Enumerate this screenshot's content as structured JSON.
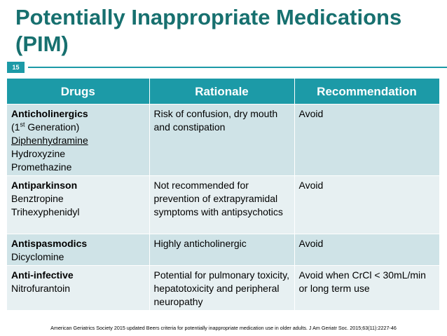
{
  "title": "Potentially Inappropriate Medications (PIM)",
  "slide_number": "15",
  "table": {
    "header": [
      "Drugs",
      "Rationale",
      "Recommendation"
    ],
    "rows": [
      [
        [
          "Anticholinergics",
          [
            "(1",
            "st",
            " Generation)"
          ],
          "Diphenhydramine",
          "Hydroxyzine",
          "Promethazine"
        ],
        "Risk of confusion, dry mouth and constipation",
        "Avoid"
      ],
      [
        [
          "Antiparkinson",
          "Benztropine",
          "Trihexyphenidyl"
        ],
        "Not recommended for prevention of extrapyramidal symptoms with antipsychotics",
        "Avoid"
      ],
      [
        [
          "Antispasmodics",
          "Dicyclomine"
        ],
        "Highly anticholinergic",
        "Avoid"
      ],
      [
        [
          "Anti-infective",
          "Nitrofurantoin"
        ],
        "Potential for pulmonary toxicity, hepatotoxicity and peripheral neuropathy",
        "Avoid when CrCl < 30mL/min or long term use"
      ]
    ]
  },
  "footnote": "American Geriatrics Society 2015 updated Beers criteria for potentially inappropriate medication use in older adults. J Am Geriatr Soc. 2015;63(11):2227-46"
}
